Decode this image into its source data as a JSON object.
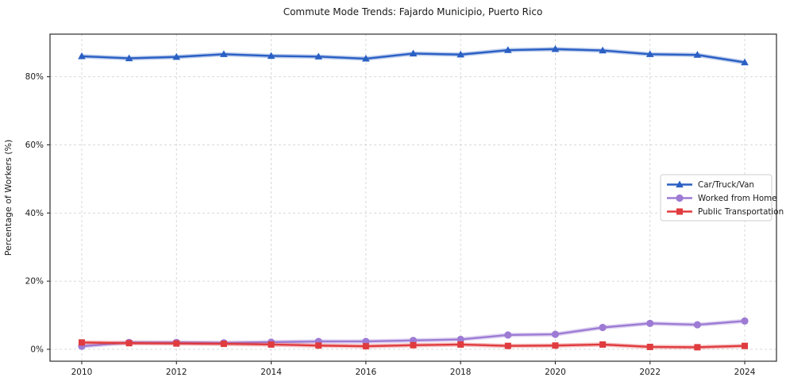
{
  "title": "Commute Mode Trends: Fajardo Municipio, Puerto Rico",
  "chart_data": {
    "type": "line",
    "title": "Commute Mode Trends: Fajardo Municipio, Puerto Rico",
    "xlabel": "",
    "ylabel": "Percentage of Workers (%)",
    "x": [
      2010,
      2011,
      2012,
      2013,
      2014,
      2015,
      2016,
      2017,
      2018,
      2019,
      2020,
      2021,
      2022,
      2023,
      2024
    ],
    "xticks": [
      2010,
      2012,
      2014,
      2016,
      2018,
      2020,
      2022,
      2024
    ],
    "yticks": [
      0,
      20,
      40,
      60,
      80
    ],
    "ytick_suffix": "%",
    "xlim": [
      2009.33,
      2024.67
    ],
    "ylim": [
      -3.5,
      92.5
    ],
    "grid": true,
    "grid_style": "dashed",
    "legend_position": "right-middle",
    "series": [
      {
        "name": "Car/Truck/Van",
        "marker": "triangle",
        "color": "#2a5fc4",
        "values": [
          86.0,
          85.4,
          85.8,
          86.6,
          86.1,
          85.9,
          85.3,
          86.8,
          86.5,
          87.8,
          88.1,
          87.7,
          86.6,
          86.4,
          84.2
        ]
      },
      {
        "name": "Worked from Home",
        "marker": "circle",
        "color": "#9d7bd4",
        "values": [
          0.9,
          2.0,
          2.0,
          1.9,
          2.1,
          2.3,
          2.3,
          2.6,
          2.9,
          4.2,
          4.4,
          6.4,
          7.6,
          7.2,
          8.3
        ]
      },
      {
        "name": "Public Transportation",
        "marker": "square",
        "color": "#e03b3e",
        "values": [
          2.0,
          1.8,
          1.7,
          1.6,
          1.4,
          1.1,
          0.9,
          1.2,
          1.4,
          1.0,
          1.1,
          1.4,
          0.7,
          0.6,
          1.0
        ]
      }
    ]
  },
  "colors": {
    "spine": "#2b2b2b",
    "grid": "#d4d4d4",
    "text": "#1a1a1a",
    "legend_border": "#cfcfcf",
    "legend_bg": "#ffffff"
  }
}
